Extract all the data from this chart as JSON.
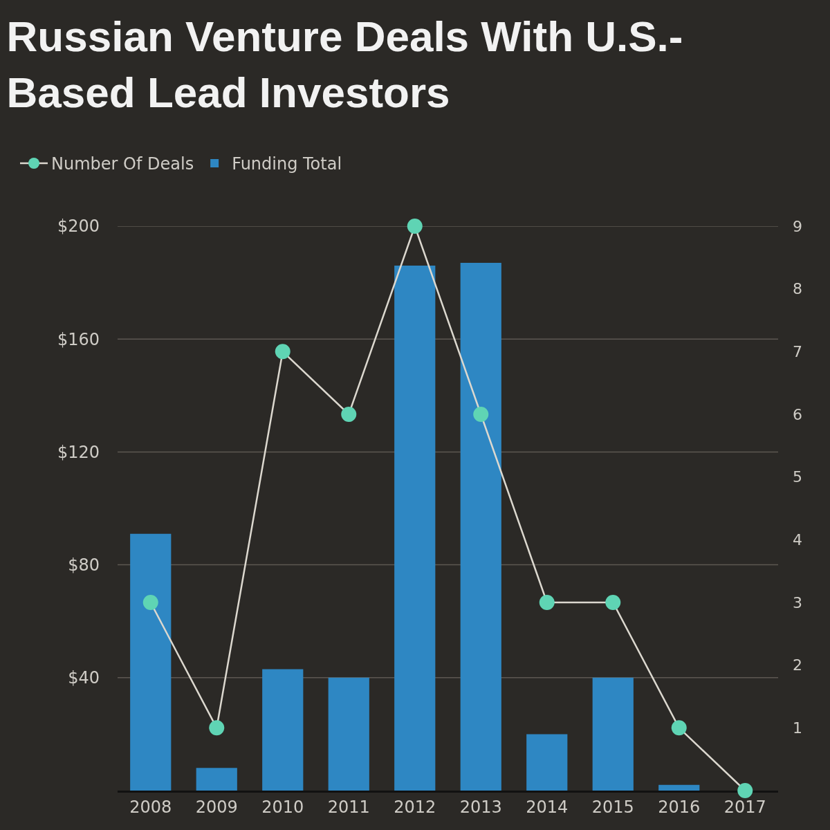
{
  "chart_data": {
    "type": "bar",
    "title": "Russian Venture Deals With U.S.-Based Lead Investors",
    "categories": [
      "2008",
      "2009",
      "2010",
      "2011",
      "2012",
      "2013",
      "2014",
      "2015",
      "2016",
      "2017"
    ],
    "series": [
      {
        "name": "Number Of Deals",
        "type": "line",
        "axis": "y2",
        "color": "#5fd4b4",
        "values": [
          3,
          1,
          7,
          6,
          9,
          6,
          3,
          3,
          1,
          0
        ]
      },
      {
        "name": "Funding Total",
        "color": "#2e87c3",
        "values": [
          91,
          8,
          43,
          40,
          186,
          187,
          20,
          40,
          2,
          0
        ]
      }
    ],
    "ylim": [
      0,
      200
    ],
    "yticks": [
      {
        "value": 40,
        "label": "$40"
      },
      {
        "value": 80,
        "label": "$80"
      },
      {
        "value": 120,
        "label": "$120"
      },
      {
        "value": 160,
        "label": "$160"
      },
      {
        "value": 200,
        "label": "$200"
      }
    ],
    "y2lim": [
      0,
      9
    ],
    "y2ticks": [
      1,
      2,
      3,
      4,
      5,
      6,
      7,
      8,
      9
    ],
    "grid": "y",
    "legend": "top left",
    "marker": "circle",
    "line_style": "solid"
  }
}
